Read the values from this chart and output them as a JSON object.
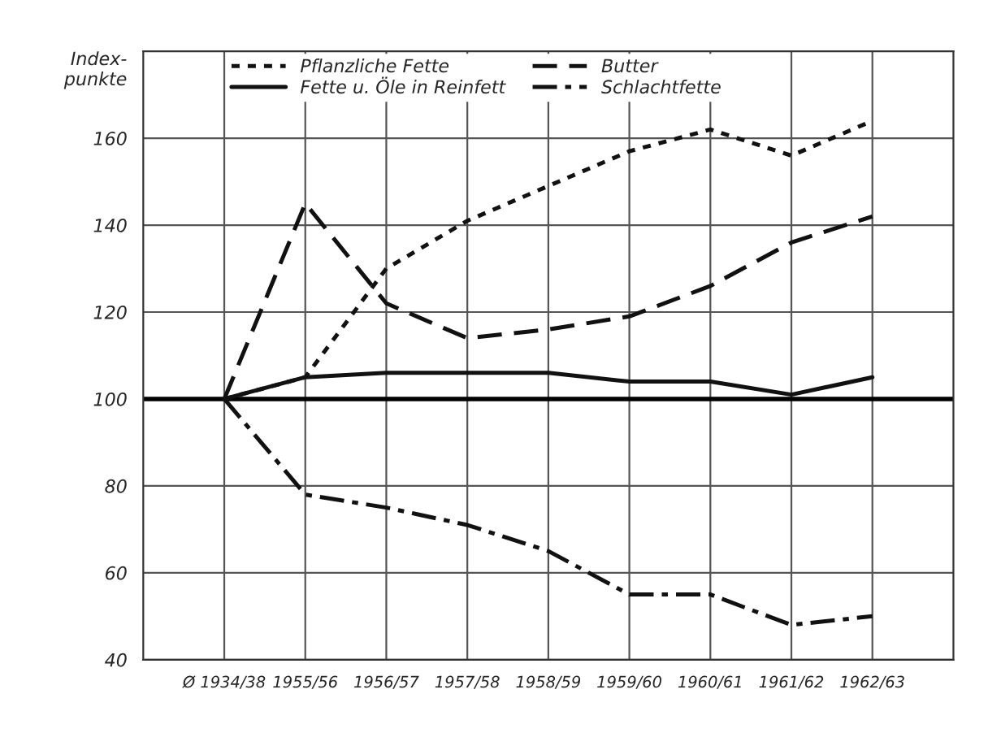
{
  "chart_data": {
    "type": "line",
    "ylabel": "Index-\npunkte",
    "categories": [
      "Ø 1934/38",
      "1955/56",
      "1956/57",
      "1957/58",
      "1958/59",
      "1959/60",
      "1960/61",
      "1961/62",
      "1962/63"
    ],
    "series": [
      {
        "name": "Pflanzliche Fette",
        "color": "#111111",
        "line_style": "dotted",
        "values": [
          100,
          105,
          130,
          141,
          149,
          157,
          162,
          156,
          164
        ]
      },
      {
        "name": "Fette u. Öle in Reinfett",
        "color": "#111111",
        "line_style": "solid",
        "values": [
          100,
          105,
          106,
          106,
          106,
          104,
          104,
          101,
          105
        ]
      },
      {
        "name": "Butter",
        "color": "#111111",
        "line_style": "dashed",
        "values": [
          100,
          145,
          122,
          114,
          116,
          119,
          126,
          136,
          142
        ]
      },
      {
        "name": "Schlachtfette",
        "color": "#111111",
        "line_style": "dashdot",
        "values": [
          100,
          78,
          75,
          71,
          65,
          55,
          55,
          48,
          50
        ]
      }
    ],
    "ylim": [
      40,
      180
    ],
    "yticks": [
      40,
      60,
      80,
      100,
      120,
      140,
      160
    ],
    "ref_lines": [
      {
        "axis": "y",
        "value": 100,
        "color": "#000000"
      }
    ],
    "grid": true,
    "legend": "top left",
    "marker": "none"
  }
}
